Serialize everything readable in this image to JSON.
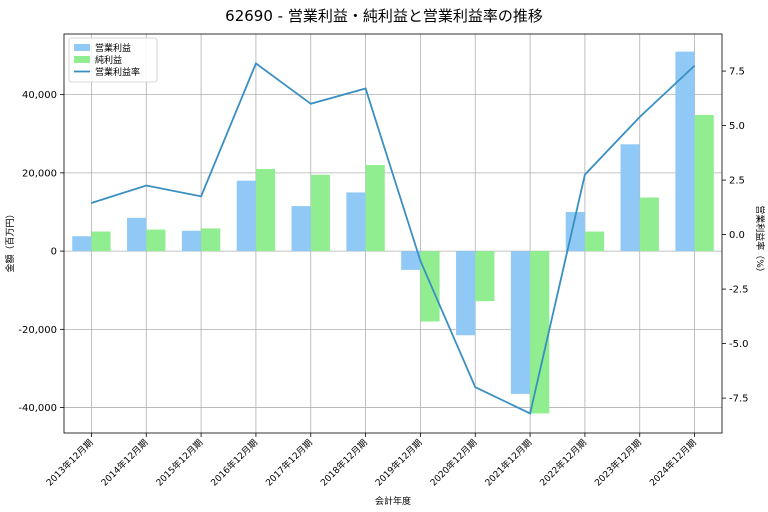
{
  "chart_data": {
    "type": "bar",
    "title": "62690 - 営業利益・純利益と営業利益率の推移",
    "xlabel": "会計年度",
    "ylabel": "金額（百万円）",
    "y2label": "営業利益率（%）",
    "categories": [
      "2013年12月期",
      "2014年12月期",
      "2015年12月期",
      "2016年12月期",
      "2017年12月期",
      "2018年12月期",
      "2019年12月期",
      "2020年12月期",
      "2021年12月期",
      "2022年12月期",
      "2023年12月期",
      "2024年12月期"
    ],
    "series": [
      {
        "name": "営業利益",
        "kind": "bar",
        "axis": "left",
        "color": "#90c9f5",
        "values": [
          3800,
          8500,
          5200,
          18000,
          11500,
          15000,
          -4800,
          -21500,
          -36500,
          10000,
          27300,
          51000
        ]
      },
      {
        "name": "純利益",
        "kind": "bar",
        "axis": "left",
        "color": "#90ee90",
        "values": [
          5000,
          5500,
          5800,
          21000,
          19500,
          22000,
          -18000,
          -12800,
          -41500,
          5000,
          13700,
          34800
        ]
      },
      {
        "name": "営業利益率",
        "kind": "line",
        "axis": "right",
        "color": "#3a8fc2",
        "values": [
          1.45,
          2.25,
          1.75,
          7.85,
          6.0,
          6.7,
          -1.2,
          -7.0,
          -8.2,
          2.75,
          5.4,
          7.75
        ]
      }
    ],
    "ylim": [
      -46500,
      55500
    ],
    "y2lim": [
      -9.1,
      9.2
    ],
    "yticks": [
      -40000,
      -20000,
      0,
      20000,
      40000
    ],
    "y2ticks": [
      -7.5,
      -5.0,
      -2.5,
      0.0,
      2.5,
      5.0,
      7.5
    ],
    "ytick_labels": [
      "-40,000",
      "-20,000",
      "0",
      "20,000",
      "40,000"
    ],
    "y2tick_labels": [
      "-7.5",
      "-5.0",
      "-2.5",
      "0.0",
      "2.5",
      "5.0",
      "7.5"
    ],
    "grid": true,
    "legend_position": "top-left"
  }
}
